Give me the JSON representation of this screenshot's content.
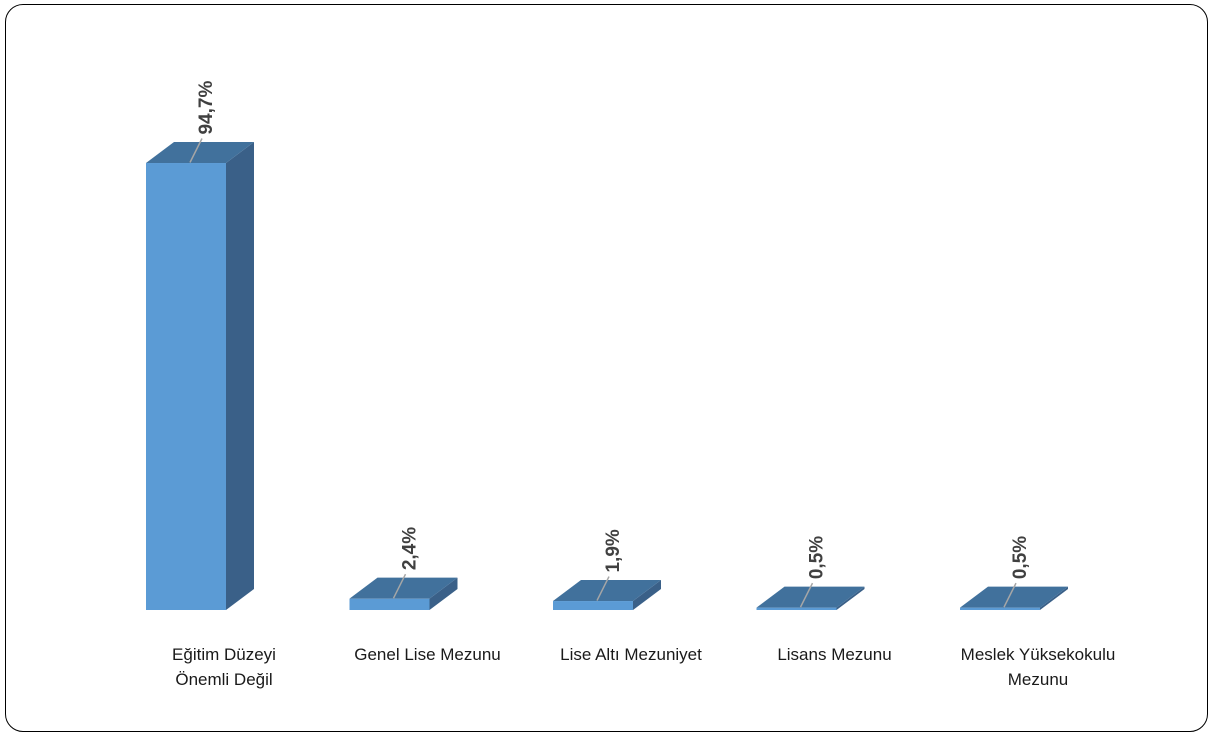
{
  "chart_data": {
    "type": "bar",
    "style": "3d-column",
    "categories": [
      [
        "Eğitim Düzeyi",
        "Önemli Değil"
      ],
      [
        "Genel Lise Mezunu"
      ],
      [
        "Lise Altı Mezuniyet"
      ],
      [
        "Lisans Mezunu"
      ],
      [
        "Meslek Yüksekokulu",
        "Mezunu"
      ]
    ],
    "values": [
      94.7,
      2.4,
      1.9,
      0.5,
      0.5
    ],
    "data_labels": [
      "94,7%",
      "2,4%",
      "1,9%",
      "0,5%",
      "0,5%"
    ],
    "title": "",
    "xlabel": "",
    "ylabel": "",
    "ylim": [
      0,
      100
    ],
    "grid": false,
    "legend": "none",
    "colors": {
      "front": "#5B9BD5",
      "side": "#3A6088",
      "top": "#41719C",
      "label": "#404040",
      "leader": "#A6A6A6"
    }
  }
}
